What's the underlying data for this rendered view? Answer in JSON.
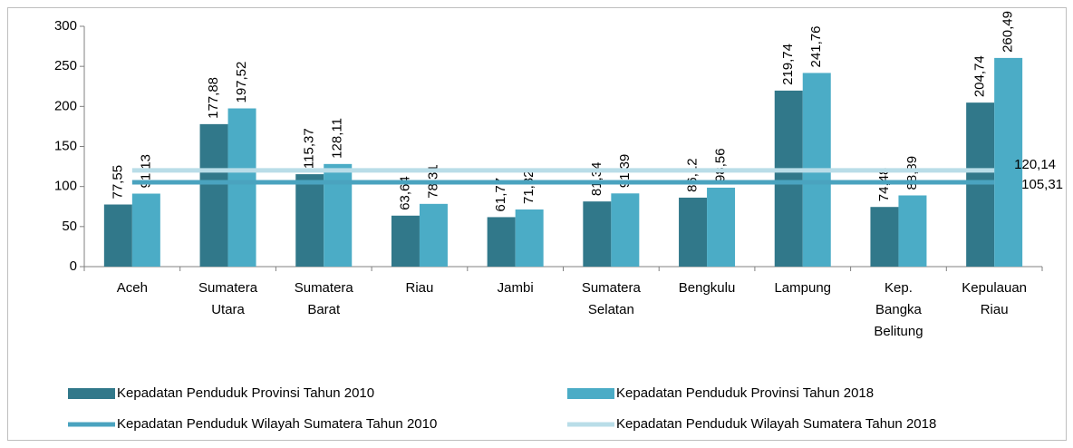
{
  "chart_data": {
    "type": "bar",
    "categories": [
      "Aceh",
      "Sumatera Utara",
      "Sumatera Barat",
      "Riau",
      "Jambi",
      "Sumatera Selatan",
      "Bengkulu",
      "Lampung",
      "Kep. Bangka Belitung",
      "Kepulauan Riau"
    ],
    "series": [
      {
        "name": "Kepadatan Penduduk Provinsi Tahun 2010",
        "color": "#31788a",
        "kind": "bar",
        "values": [
          77.55,
          177.88,
          115.37,
          63.64,
          61.77,
          81.34,
          86.12,
          219.74,
          74.48,
          204.74
        ],
        "value_labels": [
          "77,55",
          "177,88",
          "115,37",
          "63,64",
          "61,77",
          "81,34",
          "86,12",
          "219,74",
          "74,48",
          "204,74"
        ]
      },
      {
        "name": "Kepadatan Penduduk Provinsi Tahun 2018",
        "color": "#4bacc6",
        "kind": "bar",
        "values": [
          91.13,
          197.52,
          128.11,
          78.31,
          71.32,
          91.39,
          98.56,
          241.76,
          88.89,
          260.49
        ],
        "value_labels": [
          "91,13",
          "197,52",
          "128,11",
          "78,31",
          "71,32",
          "91,39",
          "98,56",
          "241,76",
          "88,89",
          "260,49"
        ]
      },
      {
        "name": "Kepadatan Penduduk Wilayah Sumatera Tahun 2010",
        "color": "#4aa3bf",
        "kind": "line",
        "values": [
          105.31,
          105.31,
          105.31,
          105.31,
          105.31,
          105.31,
          105.31,
          105.31,
          105.31,
          105.31
        ],
        "end_label": "105,31"
      },
      {
        "name": "Kepadatan Penduduk Wilayah Sumatera Tahun 2018",
        "color": "#b9dde8",
        "kind": "line",
        "values": [
          120.14,
          120.14,
          120.14,
          120.14,
          120.14,
          120.14,
          120.14,
          120.14,
          120.14,
          120.14
        ],
        "end_label": "120,14"
      }
    ],
    "ylim": [
      0,
      300
    ],
    "yticks": [
      0,
      50,
      100,
      150,
      200,
      250,
      300
    ]
  }
}
